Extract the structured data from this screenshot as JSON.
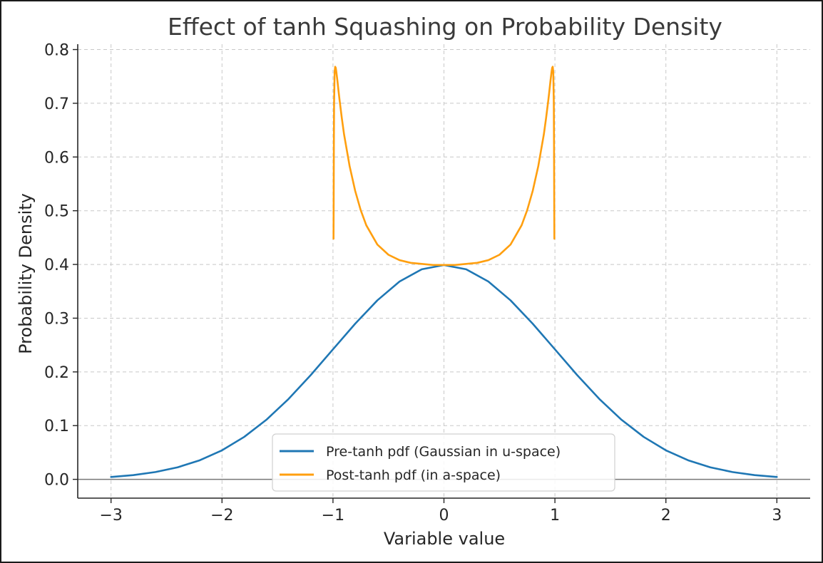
{
  "chart_data": {
    "type": "line",
    "title": "Effect of tanh Squashing on Probability Density",
    "xlabel": "Variable value",
    "ylabel": "Probability Density",
    "xlim": [
      -3.3,
      3.3
    ],
    "ylim": [
      -0.035,
      0.81
    ],
    "xticks": [
      -3,
      -2,
      -1,
      0,
      1,
      2,
      3
    ],
    "xtick_labels": [
      "−3",
      "−2",
      "−1",
      "0",
      "1",
      "2",
      "3"
    ],
    "yticks": [
      0.0,
      0.1,
      0.2,
      0.3,
      0.4,
      0.5,
      0.6,
      0.7,
      0.8
    ],
    "ytick_labels": [
      "0.0",
      "0.1",
      "0.2",
      "0.3",
      "0.4",
      "0.5",
      "0.6",
      "0.7",
      "0.8"
    ],
    "grid": true,
    "zero_line": true,
    "legend_position": "lower-center",
    "series": [
      {
        "name": "Pre-tanh pdf (Gaussian in u-space)",
        "color": "#1f77b4",
        "x": [
          -3.0,
          -2.8,
          -2.6,
          -2.4,
          -2.2,
          -2.0,
          -1.8,
          -1.6,
          -1.4,
          -1.2,
          -1.0,
          -0.8,
          -0.6,
          -0.4,
          -0.2,
          0.0,
          0.2,
          0.4,
          0.6,
          0.8,
          1.0,
          1.2,
          1.4,
          1.6,
          1.8,
          2.0,
          2.2,
          2.4,
          2.6,
          2.8,
          3.0
        ],
        "y": [
          0.0044,
          0.0079,
          0.0136,
          0.0224,
          0.0355,
          0.054,
          0.079,
          0.1109,
          0.1497,
          0.1942,
          0.242,
          0.2897,
          0.3332,
          0.3683,
          0.391,
          0.3989,
          0.391,
          0.3683,
          0.3332,
          0.2897,
          0.242,
          0.1942,
          0.1497,
          0.1109,
          0.079,
          0.054,
          0.0355,
          0.0224,
          0.0136,
          0.0079,
          0.0044
        ]
      },
      {
        "name": "Post-tanh pdf (in a-space)",
        "color": "#ff9f0f",
        "x": [
          -0.995,
          -0.994,
          -0.993,
          -0.992,
          -0.99,
          -0.985,
          -0.98,
          -0.975,
          -0.97,
          -0.96,
          -0.95,
          -0.94,
          -0.92,
          -0.9,
          -0.85,
          -0.8,
          -0.75,
          -0.7,
          -0.6,
          -0.5,
          -0.4,
          -0.3,
          -0.2,
          -0.1,
          0.0,
          0.1,
          0.2,
          0.3,
          0.4,
          0.5,
          0.6,
          0.7,
          0.75,
          0.8,
          0.85,
          0.9,
          0.92,
          0.94,
          0.95,
          0.96,
          0.97,
          0.975,
          0.98,
          0.985,
          0.99,
          0.992,
          0.993,
          0.994,
          0.995
        ],
        "y": [
          0.448,
          0.502,
          0.561,
          0.623,
          0.701,
          0.759,
          0.768,
          0.766,
          0.759,
          0.742,
          0.723,
          0.705,
          0.672,
          0.642,
          0.583,
          0.537,
          0.501,
          0.473,
          0.437,
          0.418,
          0.408,
          0.403,
          0.401,
          0.399,
          0.399,
          0.399,
          0.401,
          0.403,
          0.408,
          0.418,
          0.437,
          0.473,
          0.501,
          0.537,
          0.583,
          0.642,
          0.672,
          0.705,
          0.723,
          0.742,
          0.759,
          0.766,
          0.768,
          0.759,
          0.701,
          0.623,
          0.561,
          0.502,
          0.448
        ]
      }
    ]
  }
}
